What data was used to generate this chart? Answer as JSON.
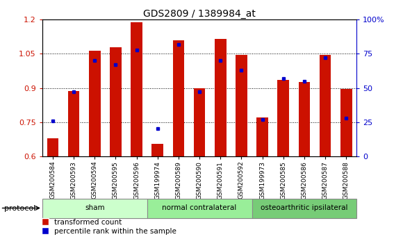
{
  "title": "GDS2809 / 1389984_at",
  "samples": [
    "GSM200584",
    "GSM200593",
    "GSM200594",
    "GSM200595",
    "GSM200596",
    "GSM199974",
    "GSM200589",
    "GSM200590",
    "GSM200591",
    "GSM200592",
    "GSM199973",
    "GSM200585",
    "GSM200586",
    "GSM200587",
    "GSM200588"
  ],
  "transformed_count": [
    0.68,
    0.885,
    1.065,
    1.08,
    1.19,
    0.655,
    1.11,
    0.9,
    1.115,
    1.045,
    0.77,
    0.935,
    0.925,
    1.045,
    0.895
  ],
  "percentile_rank": [
    26,
    47,
    70,
    67,
    78,
    20,
    82,
    47,
    70,
    63,
    27,
    57,
    55,
    72,
    28
  ],
  "groups": [
    {
      "label": "sham",
      "start": 0,
      "end": 5,
      "color": "#ccffcc"
    },
    {
      "label": "normal contralateral",
      "start": 5,
      "end": 10,
      "color": "#99ee99"
    },
    {
      "label": "osteoarthritic ipsilateral",
      "start": 10,
      "end": 15,
      "color": "#77cc77"
    }
  ],
  "bar_color": "#cc1100",
  "dot_color": "#0000cc",
  "ylim_left": [
    0.6,
    1.2
  ],
  "ylim_right": [
    0,
    100
  ],
  "yticks_left": [
    0.6,
    0.75,
    0.9,
    1.05,
    1.2
  ],
  "yticks_right": [
    0,
    25,
    50,
    75,
    100
  ],
  "ytick_labels_right": [
    "0",
    "25",
    "50",
    "75",
    "100%"
  ],
  "bar_width": 0.55,
  "background_color": "#ffffff",
  "grid_color": "#000000",
  "ylabel_left_color": "#cc1100",
  "ylabel_right_color": "#0000cc"
}
